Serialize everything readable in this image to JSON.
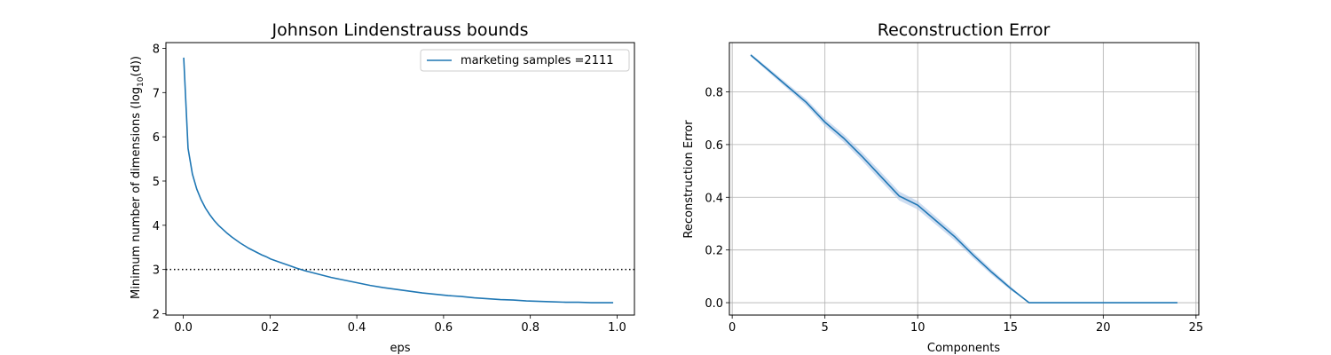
{
  "chart_data": [
    {
      "type": "line",
      "title": "Johnson Lindenstrauss bounds",
      "xlabel": "eps",
      "ylabel_main": "Minimum number of dimensions (log",
      "ylabel_sub": "10",
      "ylabel_end": "(d))",
      "xlim": [
        -0.04,
        1.04
      ],
      "ylim": [
        1.97,
        8.13
      ],
      "xticks": [
        0.0,
        0.2,
        0.4,
        0.6,
        0.8,
        1.0
      ],
      "xtick_labels": [
        "0.0",
        "0.2",
        "0.4",
        "0.6",
        "0.8",
        "1.0"
      ],
      "yticks": [
        2,
        3,
        4,
        5,
        6,
        7,
        8
      ],
      "ytick_labels": [
        "2",
        "3",
        "4",
        "5",
        "6",
        "7",
        "8"
      ],
      "grid": false,
      "legend_position": "upper right",
      "series": [
        {
          "name": "marketing samples =2111",
          "color": "#1f77b4",
          "x": [
            0.001,
            0.011,
            0.021,
            0.031,
            0.041,
            0.051,
            0.061,
            0.071,
            0.081,
            0.091,
            0.101,
            0.111,
            0.121,
            0.131,
            0.141,
            0.151,
            0.161,
            0.171,
            0.181,
            0.191,
            0.201,
            0.221,
            0.241,
            0.261,
            0.281,
            0.301,
            0.321,
            0.341,
            0.361,
            0.381,
            0.401,
            0.431,
            0.461,
            0.491,
            0.521,
            0.551,
            0.581,
            0.611,
            0.641,
            0.671,
            0.701,
            0.731,
            0.761,
            0.791,
            0.821,
            0.851,
            0.881,
            0.911,
            0.941,
            0.971,
            0.991
          ],
          "y": [
            7.79,
            5.74,
            5.16,
            4.82,
            4.58,
            4.39,
            4.24,
            4.11,
            4.0,
            3.91,
            3.82,
            3.74,
            3.67,
            3.6,
            3.54,
            3.48,
            3.43,
            3.38,
            3.33,
            3.29,
            3.24,
            3.17,
            3.1,
            3.03,
            2.97,
            2.92,
            2.87,
            2.82,
            2.78,
            2.74,
            2.7,
            2.64,
            2.59,
            2.55,
            2.51,
            2.47,
            2.44,
            2.41,
            2.39,
            2.36,
            2.34,
            2.32,
            2.31,
            2.29,
            2.28,
            2.27,
            2.26,
            2.26,
            2.25,
            2.25,
            2.25
          ]
        }
      ],
      "hline": {
        "y": 3,
        "style": "dotted",
        "color": "#000000"
      }
    },
    {
      "type": "line",
      "title": "Reconstruction Error",
      "xlabel": "Components",
      "ylabel": "Reconstruction Error",
      "xlim": [
        -0.15,
        25.15
      ],
      "ylim": [
        -0.047,
        0.987
      ],
      "xticks": [
        0,
        5,
        10,
        15,
        20,
        25
      ],
      "xtick_labels": [
        "0",
        "5",
        "10",
        "15",
        "20",
        "25"
      ],
      "yticks": [
        0.0,
        0.2,
        0.4,
        0.6,
        0.8
      ],
      "ytick_labels": [
        "0.0",
        "0.2",
        "0.4",
        "0.6",
        "0.8"
      ],
      "grid": true,
      "series": [
        {
          "color": "#1f77b4",
          "band_color": "#aec7e8",
          "x": [
            1,
            2,
            3,
            4,
            5,
            6,
            7,
            8,
            9,
            10,
            11,
            12,
            13,
            14,
            15,
            16,
            17,
            18,
            19,
            20,
            21,
            22,
            23,
            24
          ],
          "y": [
            0.94,
            0.88,
            0.82,
            0.76,
            0.685,
            0.625,
            0.555,
            0.48,
            0.405,
            0.37,
            0.31,
            0.25,
            0.18,
            0.115,
            0.055,
            0.0,
            0.0,
            0.0,
            0.0,
            0.0,
            0.0,
            0.0,
            0.0,
            0.0
          ],
          "band": [
            0.005,
            0.008,
            0.01,
            0.012,
            0.014,
            0.015,
            0.016,
            0.017,
            0.017,
            0.016,
            0.015,
            0.014,
            0.012,
            0.01,
            0.007,
            0.0,
            0.0,
            0.0,
            0.0,
            0.0,
            0.0,
            0.0,
            0.0,
            0.0
          ]
        }
      ]
    }
  ]
}
